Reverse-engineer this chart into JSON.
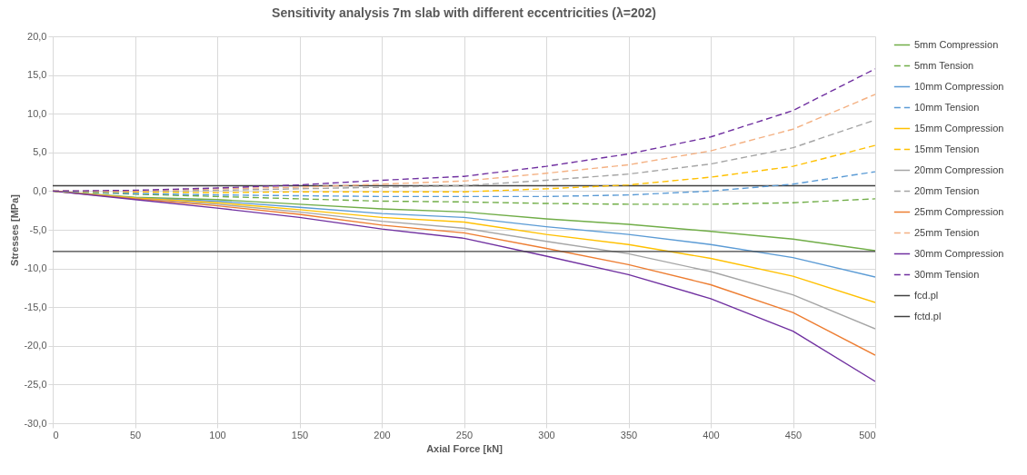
{
  "chart_data": {
    "type": "line",
    "title": "Sensitivity analysis 7m slab with different eccentricities (λ=202)",
    "xlabel": "Axial Force [kN]",
    "ylabel": "Stresses [MPa]",
    "x": [
      0,
      50,
      100,
      150,
      200,
      250,
      300,
      350,
      400,
      450,
      500
    ],
    "xlim": [
      0,
      500
    ],
    "xticks": [
      0,
      50,
      100,
      150,
      200,
      250,
      300,
      350,
      400,
      450,
      500
    ],
    "ylim": [
      -30,
      20
    ],
    "yticks": [
      {
        "value": -30,
        "label": "-30,0"
      },
      {
        "value": -25,
        "label": "-25,0"
      },
      {
        "value": -20,
        "label": "-20,0"
      },
      {
        "value": -15,
        "label": "-15,0"
      },
      {
        "value": -10,
        "label": "-10,0"
      },
      {
        "value": -5,
        "label": "-5,0"
      },
      {
        "value": 0,
        "label": "0,0"
      },
      {
        "value": 5,
        "label": "5,0"
      },
      {
        "value": 10,
        "label": "10,0"
      },
      {
        "value": 15,
        "label": "15,0"
      },
      {
        "value": 20,
        "label": "20,0"
      }
    ],
    "grid": true,
    "legend": "right",
    "line_style": "solid",
    "series": [
      {
        "name": "5mm Compression",
        "color": "#70ad47",
        "values": [
          0,
          -0.8,
          -1.1,
          -1.7,
          -2.3,
          -2.7,
          -3.6,
          -4.3,
          -5.2,
          -6.2,
          -7.7
        ]
      },
      {
        "name": "5mm Tension",
        "color": "#70ad47",
        "line_style": "dashed",
        "values": [
          0,
          -0.4,
          -0.7,
          -1.0,
          -1.3,
          -1.4,
          -1.6,
          -1.7,
          -1.7,
          -1.5,
          -1.0
        ]
      },
      {
        "name": "10mm Compression",
        "color": "#5b9bd5",
        "values": [
          0,
          -0.9,
          -1.3,
          -2.1,
          -2.9,
          -3.4,
          -4.6,
          -5.6,
          -6.9,
          -8.6,
          -11.1
        ]
      },
      {
        "name": "10mm Tension",
        "color": "#5b9bd5",
        "line_style": "dashed",
        "values": [
          0,
          -0.3,
          -0.5,
          -0.6,
          -0.7,
          -0.7,
          -0.7,
          -0.5,
          0.0,
          0.9,
          2.5
        ]
      },
      {
        "name": "15mm Compression",
        "color": "#ffc000",
        "values": [
          0,
          -0.9,
          -1.5,
          -2.4,
          -3.4,
          -4.0,
          -5.6,
          -6.9,
          -8.7,
          -11.0,
          -14.4
        ]
      },
      {
        "name": "15mm Tension",
        "color": "#ffc000",
        "line_style": "dashed",
        "values": [
          0,
          -0.1,
          -0.2,
          -0.1,
          -0.1,
          -0.1,
          0.3,
          0.8,
          1.8,
          3.2,
          5.9
        ]
      },
      {
        "name": "20mm Compression",
        "color": "#a5a5a5",
        "values": [
          0,
          -1.0,
          -1.7,
          -2.7,
          -3.9,
          -4.8,
          -6.5,
          -8.1,
          -10.4,
          -13.4,
          -17.8
        ]
      },
      {
        "name": "20mm Tension",
        "color": "#a5a5a5",
        "line_style": "dashed",
        "values": [
          0,
          0.0,
          0.1,
          0.3,
          0.5,
          0.7,
          1.4,
          2.2,
          3.5,
          5.6,
          9.2
        ]
      },
      {
        "name": "25mm Compression",
        "color": "#ed7d31",
        "values": [
          0,
          -1.0,
          -1.9,
          -3.0,
          -4.4,
          -5.4,
          -7.4,
          -9.5,
          -12.1,
          -15.7,
          -21.2
        ]
      },
      {
        "name": "25mm Tension",
        "color": "#f4b183",
        "line_style": "dashed",
        "values": [
          0,
          0.0,
          0.3,
          0.5,
          0.9,
          1.3,
          2.3,
          3.4,
          5.2,
          8.0,
          12.5
        ]
      },
      {
        "name": "30mm Compression",
        "color": "#7030a0",
        "values": [
          0,
          -1.1,
          -2.2,
          -3.4,
          -4.9,
          -6.1,
          -8.4,
          -10.8,
          -13.9,
          -18.1,
          -24.6
        ]
      },
      {
        "name": "30mm Tension",
        "color": "#7030a0",
        "line_style": "dashed",
        "values": [
          0,
          0.1,
          0.4,
          0.8,
          1.4,
          1.9,
          3.2,
          4.8,
          7.0,
          10.4,
          15.8
        ]
      },
      {
        "name": "fcd.pl",
        "color": "#404040",
        "values": [
          -7.8,
          -7.8,
          -7.8,
          -7.8,
          -7.8,
          -7.8,
          -7.8,
          -7.8,
          -7.8,
          -7.8,
          -7.8
        ]
      },
      {
        "name": "fctd.pl",
        "color": "#404040",
        "values": [
          0.7,
          0.7,
          0.7,
          0.7,
          0.7,
          0.7,
          0.7,
          0.7,
          0.7,
          0.7,
          0.7
        ]
      }
    ]
  }
}
